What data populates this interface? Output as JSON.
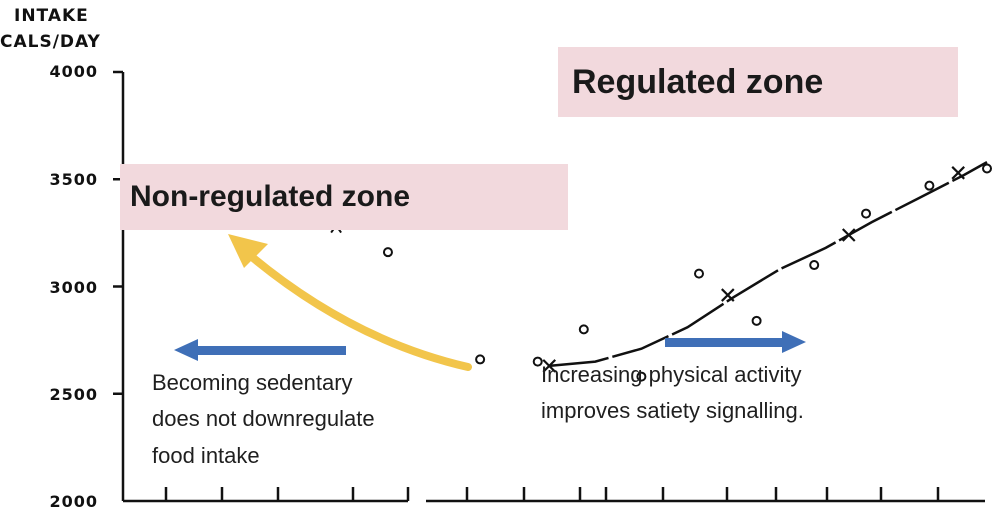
{
  "chart_data": {
    "type": "scatter",
    "ylabel_line1": "INTAKE",
    "ylabel_line2": "CALS/DAY",
    "yticks": [
      "4000",
      "3500",
      "3000",
      "2500",
      "2000"
    ],
    "ylim": [
      2000,
      4000
    ],
    "xlim": [
      0,
      16
    ],
    "x_ticks": [
      2,
      3,
      4,
      5,
      6,
      7,
      8,
      9,
      10,
      11,
      12,
      13,
      14,
      15,
      16
    ],
    "series": [
      {
        "marker": "circle",
        "points": [
          [
            4.6,
            3160
          ],
          [
            6.2,
            2660
          ],
          [
            7.2,
            2650
          ],
          [
            8.0,
            2800
          ],
          [
            9.0,
            2580
          ],
          [
            10.0,
            3060
          ],
          [
            11.0,
            2840
          ],
          [
            12.0,
            3100
          ],
          [
            12.9,
            3340
          ],
          [
            14.0,
            3470
          ],
          [
            15.0,
            3550
          ]
        ]
      },
      {
        "marker": "x",
        "points": [
          [
            7.4,
            2630
          ],
          [
            10.5,
            2960
          ],
          [
            12.6,
            3240
          ],
          [
            14.5,
            3530
          ]
        ]
      },
      {
        "marker": "caret",
        "points": [
          [
            3.7,
            3270
          ]
        ]
      }
    ],
    "trend_line": [
      [
        7.4,
        2630
      ],
      [
        8.2,
        2650
      ],
      [
        9.0,
        2710
      ],
      [
        9.8,
        2810
      ],
      [
        10.6,
        2950
      ],
      [
        11.4,
        3080
      ],
      [
        12.2,
        3180
      ],
      [
        13.0,
        3300
      ],
      [
        13.8,
        3410
      ],
      [
        14.6,
        3520
      ],
      [
        15.0,
        3580
      ]
    ],
    "annotations": {
      "regulated_zone": "Regulated zone",
      "non_regulated_zone": "Non-regulated zone",
      "left_note_line1": "Becoming sedentary",
      "left_note_line2": "does not downregulate",
      "left_note_line3": "food intake",
      "right_note_line1": "Increasing physical activity",
      "right_note_line2": "improves satiety signalling."
    },
    "grid": false
  },
  "colors": {
    "zone_fill": "#f2d9dd",
    "yellow_arrow": "#f2c54b",
    "blue_arrow": "#3f6fb7",
    "ink": "#111111"
  }
}
